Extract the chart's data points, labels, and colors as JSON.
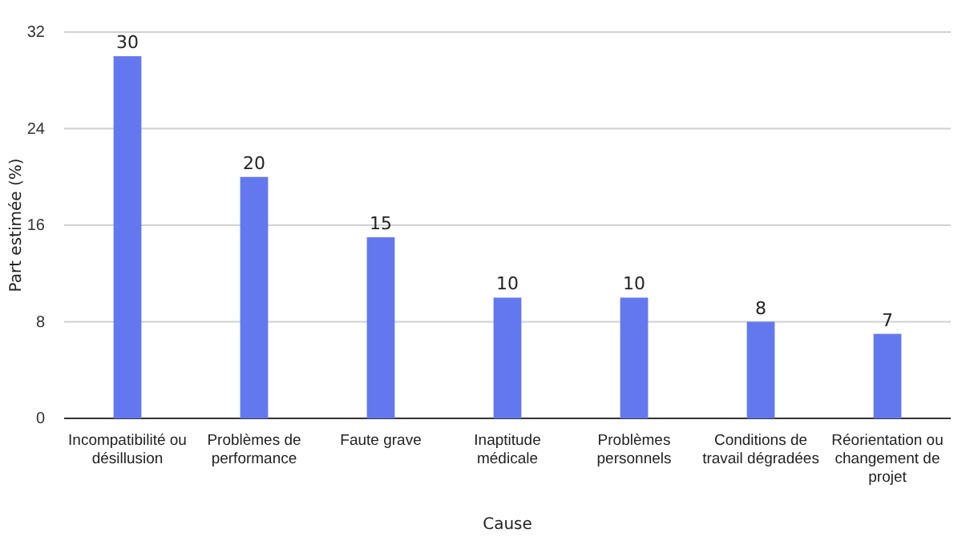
{
  "chart_data": {
    "type": "bar",
    "categories": [
      "Incompatibilité ou désillusion",
      "Problèmes de performance",
      "Faute grave",
      "Inaptitude médicale",
      "Problèmes personnels",
      "Conditions de travail dégradées",
      "Réorientation ou changement de projet"
    ],
    "values": [
      30,
      20,
      15,
      10,
      10,
      8,
      7
    ],
    "color": "#6378ef",
    "ylim": [
      0,
      32
    ],
    "yticks": [
      0,
      8,
      16,
      24,
      32
    ],
    "grid": "y",
    "data_labels": true,
    "xlabel": "Cause",
    "ylabel": "Part estimée (%)"
  }
}
